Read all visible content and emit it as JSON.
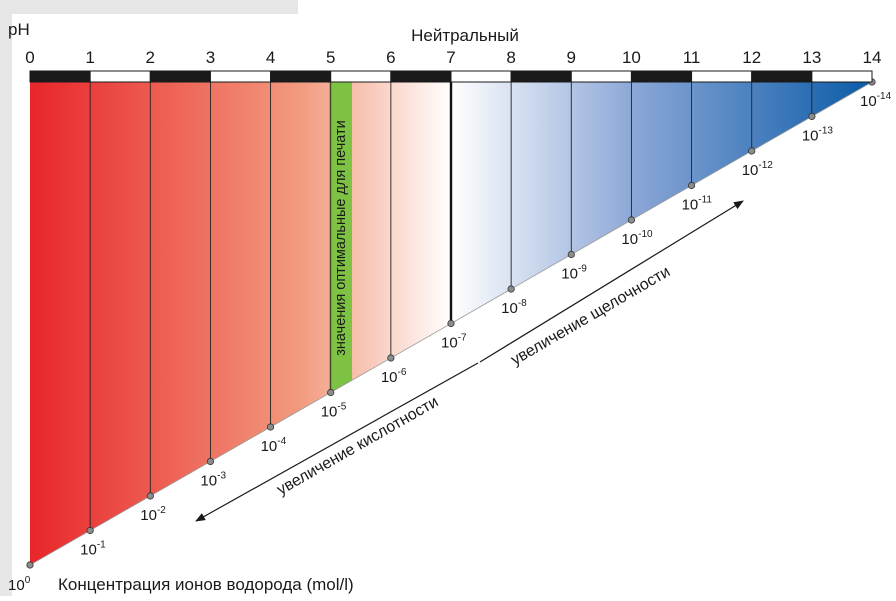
{
  "axis_label": "pH",
  "neutral_label": "Нейтральный",
  "ph_ticks": [
    "0",
    "1",
    "2",
    "3",
    "4",
    "5",
    "6",
    "7",
    "8",
    "9",
    "10",
    "11",
    "12",
    "13",
    "14"
  ],
  "concentration_exponents": [
    "0",
    "-1",
    "-2",
    "-3",
    "-4",
    "-5",
    "-6",
    "-7",
    "-8",
    "-9",
    "-10",
    "-11",
    "-12",
    "-13",
    "-14"
  ],
  "concentration_base": "10",
  "optimal_band_label": "значения оптимальные для печати",
  "acidity_label": "увеличение кислотности",
  "alkalinity_label": "увеличение щелочности",
  "concentration_caption": "Концентрация ионов водорода (mol/l)",
  "colors": {
    "acid": "#e8262a",
    "neutral": "#ffffff",
    "alkaline": "#0a5ba8",
    "optimal_band": "#7dc242",
    "background_panel": "#e6e6e6"
  }
}
